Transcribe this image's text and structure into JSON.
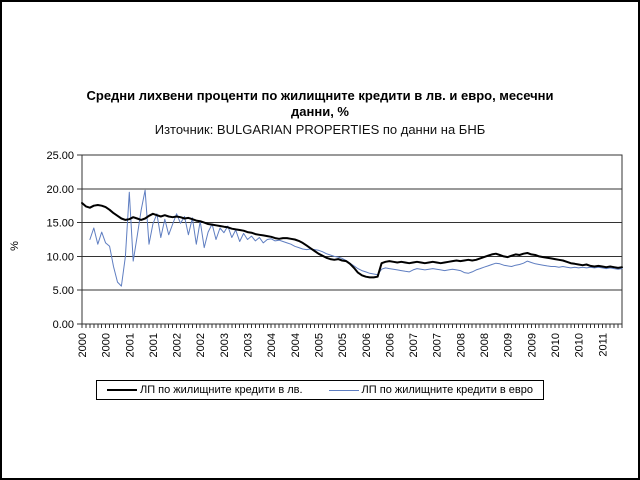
{
  "chart": {
    "title_line1": "Средни лихвени проценти по жилищните кредити в лв. и евро, месечни",
    "title_line2": "данни, %",
    "subtitle": "Източник: BULGARIAN PROPERTIES по данни на БНБ",
    "y_axis_label": "%"
  },
  "chart_data": {
    "type": "line",
    "title": "Средни лихвени проценти по жилищните кредити в лв. и евро, месечни данни, %",
    "subtitle": "Източник: BULGARIAN PROPERTIES по данни на БНБ",
    "ylabel": "%",
    "ylim": [
      0,
      25
    ],
    "ytick_step": 5,
    "y_tick_labels": [
      "0.00",
      "5.00",
      "10.00",
      "15.00",
      "20.00",
      "25.00"
    ],
    "grid": "horizontal",
    "legend_position": "bottom",
    "x_unit": "month",
    "x_start": "2000-01",
    "x_end": "2011-06",
    "x_tick_every_months": 6,
    "x_tick_labels": [
      "2000",
      "2000",
      "2001",
      "2001",
      "2002",
      "2002",
      "2003",
      "2003",
      "2004",
      "2004",
      "2005",
      "2005",
      "2006",
      "2006",
      "2007",
      "2007",
      "2008",
      "2008",
      "2009",
      "2009",
      "2010",
      "2010",
      "2011"
    ],
    "series": [
      {
        "name": "ЛП по жилищните кредити в лв.",
        "color": "#000000",
        "stroke_width": 2,
        "values": [
          17.9,
          17.4,
          17.2,
          17.5,
          17.6,
          17.5,
          17.3,
          16.9,
          16.4,
          16.0,
          15.6,
          15.4,
          15.5,
          15.8,
          15.6,
          15.4,
          15.6,
          16.0,
          16.3,
          16.1,
          15.9,
          16.1,
          15.9,
          15.8,
          15.9,
          15.8,
          15.6,
          15.7,
          15.5,
          15.3,
          15.2,
          15.0,
          14.8,
          14.7,
          14.6,
          14.5,
          14.4,
          14.3,
          14.1,
          14.0,
          13.9,
          13.8,
          13.6,
          13.5,
          13.3,
          13.2,
          13.1,
          13.0,
          12.9,
          12.7,
          12.6,
          12.7,
          12.7,
          12.6,
          12.5,
          12.3,
          12.0,
          11.6,
          11.2,
          10.8,
          10.4,
          10.1,
          9.8,
          9.6,
          9.5,
          9.6,
          9.4,
          9.3,
          8.9,
          8.3,
          7.6,
          7.2,
          7.0,
          6.9,
          6.9,
          7.0,
          9.0,
          9.2,
          9.3,
          9.2,
          9.1,
          9.2,
          9.1,
          9.0,
          9.1,
          9.2,
          9.1,
          9.0,
          9.1,
          9.2,
          9.1,
          9.0,
          9.1,
          9.2,
          9.3,
          9.4,
          9.3,
          9.4,
          9.5,
          9.4,
          9.5,
          9.7,
          9.9,
          10.1,
          10.3,
          10.4,
          10.2,
          10.0,
          9.9,
          10.1,
          10.3,
          10.2,
          10.4,
          10.5,
          10.3,
          10.2,
          10.0,
          9.9,
          9.8,
          9.7,
          9.6,
          9.5,
          9.4,
          9.2,
          9.0,
          8.9,
          8.8,
          8.7,
          8.8,
          8.6,
          8.5,
          8.6,
          8.5,
          8.4,
          8.5,
          8.4,
          8.3,
          8.4
        ]
      },
      {
        "name": "ЛП по жилищните кредити в евро",
        "color": "#5f7ec1",
        "stroke_width": 1,
        "values": [
          null,
          null,
          12.5,
          14.2,
          11.8,
          13.6,
          12.0,
          11.5,
          8.5,
          6.2,
          5.6,
          10.0,
          19.5,
          9.3,
          13.0,
          16.8,
          19.8,
          11.8,
          14.8,
          16.3,
          12.8,
          15.5,
          13.2,
          14.8,
          16.3,
          14.9,
          15.9,
          13.2,
          15.7,
          11.8,
          15.2,
          11.3,
          13.6,
          14.8,
          12.5,
          14.2,
          13.5,
          14.5,
          12.8,
          13.9,
          12.2,
          13.4,
          12.5,
          13.0,
          12.3,
          12.8,
          12.0,
          12.5,
          12.6,
          12.3,
          12.4,
          12.2,
          12.0,
          11.8,
          11.5,
          11.3,
          11.1,
          11.0,
          11.1,
          11.0,
          10.9,
          10.7,
          10.4,
          10.2,
          10.0,
          9.9,
          9.7,
          9.4,
          9.0,
          8.6,
          8.2,
          7.9,
          7.7,
          7.5,
          7.4,
          7.3,
          8.1,
          8.3,
          8.2,
          8.1,
          8.0,
          7.9,
          7.8,
          7.7,
          8.0,
          8.2,
          8.1,
          8.0,
          8.1,
          8.2,
          8.1,
          8.0,
          7.9,
          8.0,
          8.1,
          8.0,
          7.9,
          7.6,
          7.5,
          7.7,
          8.0,
          8.2,
          8.4,
          8.6,
          8.8,
          9.0,
          8.9,
          8.7,
          8.6,
          8.5,
          8.7,
          8.8,
          9.0,
          9.3,
          9.1,
          8.9,
          8.8,
          8.7,
          8.6,
          8.5,
          8.5,
          8.4,
          8.5,
          8.4,
          8.3,
          8.4,
          8.3,
          8.4,
          8.3,
          8.4,
          8.3,
          8.4,
          8.3,
          8.2,
          8.3,
          8.2,
          8.1,
          8.2
        ]
      }
    ]
  }
}
